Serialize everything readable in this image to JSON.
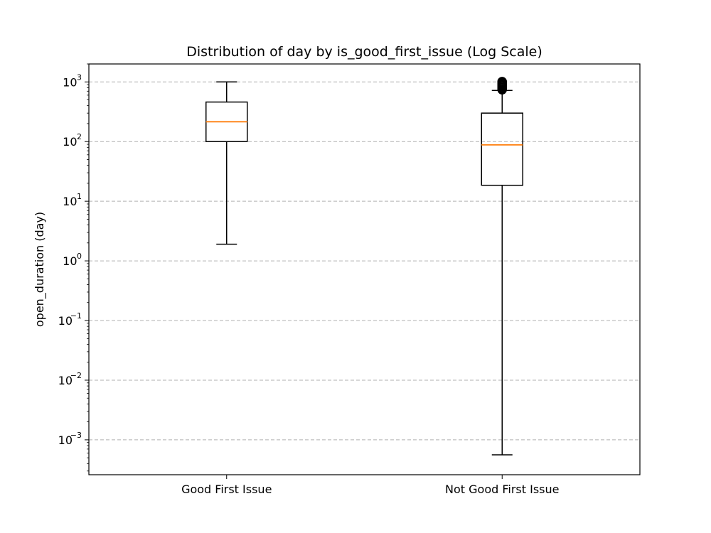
{
  "chart_data": {
    "type": "box",
    "title": "Distribution of day by is_good_first_issue (Log Scale)",
    "xlabel": "",
    "ylabel": "open_duration (day)",
    "yscale": "log",
    "ylim": [
      0.00026,
      2000
    ],
    "y_ticks": [
      {
        "value": 0.001,
        "base": "10",
        "exp": "−3"
      },
      {
        "value": 0.01,
        "base": "10",
        "exp": "−2"
      },
      {
        "value": 0.1,
        "base": "10",
        "exp": "−1"
      },
      {
        "value": 1,
        "base": "10",
        "exp": "0"
      },
      {
        "value": 10,
        "base": "10",
        "exp": "1"
      },
      {
        "value": 100,
        "base": "10",
        "exp": "2"
      },
      {
        "value": 1000,
        "base": "10",
        "exp": "3"
      }
    ],
    "grid": "y-dashed",
    "categories": [
      "Good First Issue",
      "Not Good First Issue"
    ],
    "boxes": [
      {
        "whisker_low": 1.9,
        "q1": 100,
        "median": 215,
        "q3": 460,
        "whisker_high": 1000,
        "outliers": []
      },
      {
        "whisker_low": 0.00056,
        "q1": 18.5,
        "median": 88,
        "q3": 300,
        "whisker_high": 720,
        "outliers": [
          740,
          770,
          800,
          830,
          860,
          890,
          920,
          950,
          980,
          1010
        ]
      }
    ],
    "colors": {
      "box": "#000000",
      "median": "#ff7f0e",
      "grid": "#b0b0b0"
    }
  }
}
